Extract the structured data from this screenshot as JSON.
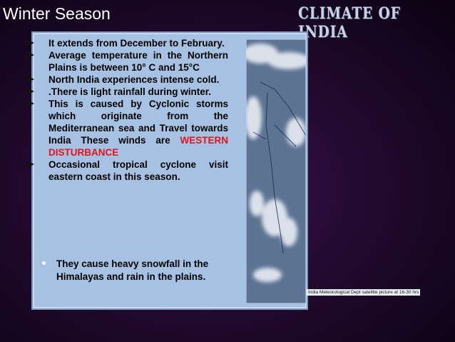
{
  "title": "Winter Season",
  "logo": "CLIMATE OF INDIA",
  "bullets": [
    {
      "text": "It extends from December to February."
    },
    {
      "text": "Average temperature in the Northern Plains is between 10° C and 15°C"
    },
    {
      "text": "North India experiences intense cold."
    },
    {
      "text": ".There is light rainfall during winter."
    },
    {
      "text": "This is caused by Cyclonic storms which originate from the Mediterranean sea and Travel towards India These winds are",
      "highlight": "WESTERN DISTURBANCE"
    },
    {
      "text": "Occasional tropical cyclone visit eastern coast in this season."
    }
  ],
  "sub_bullets": [
    "They cause heavy snowfall in the Himalayas and rain in the plains."
  ],
  "image_caption": "India Meteorological Dept satellite picture at 16-30 hrs"
}
